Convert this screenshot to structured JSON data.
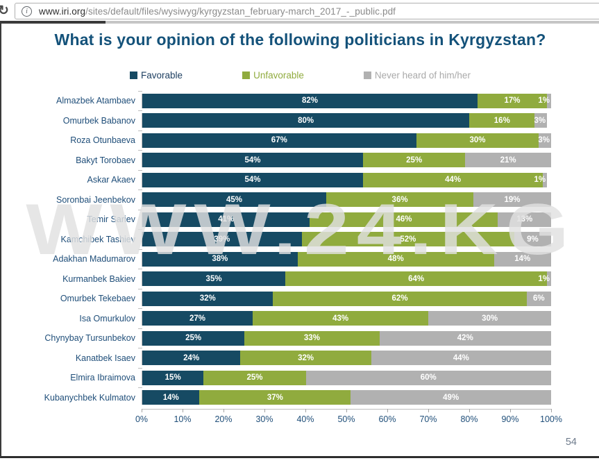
{
  "browser": {
    "reload_icon": "↻",
    "info_icon": "i",
    "url_host": "www.iri.org",
    "url_path": "/sites/default/files/wysiwyg/kyrgyzstan_february-march_2017_-_public.pdf"
  },
  "page": {
    "title": "What is your opinion of the following politicians in Kyrgyzstan?",
    "watermark": "WWW.24.KG",
    "page_number": "54"
  },
  "legend": [
    {
      "label": "Favorable",
      "color": "#164a63",
      "text_color": "#1b3d5f"
    },
    {
      "label": "Unfavorable",
      "color": "#90ab3e",
      "text_color": "#90ab3e"
    },
    {
      "label": "Never heard of him/her",
      "color": "#b1b1b1",
      "text_color": "#a9a9a9"
    }
  ],
  "chart_data": {
    "type": "bar",
    "orientation": "horizontal-stacked",
    "title": "What is your opinion of the following politicians in Kyrgyzstan?",
    "legend_position": "top",
    "xlim": [
      0,
      100
    ],
    "value_suffix": "%",
    "x_ticks": [
      "0%",
      "10%",
      "20%",
      "30%",
      "40%",
      "50%",
      "60%",
      "70%",
      "80%",
      "90%",
      "100%"
    ],
    "categories": [
      "Almazbek Atambaev",
      "Omurbek Babanov",
      "Roza Otunbaeva",
      "Bakyt Torobaev",
      "Askar Akaev",
      "Soronbai Jeenbekov",
      "Temir Sariev",
      "Kamchibek Tashiev",
      "Adakhan Madumarov",
      "Kurmanbek Bakiev",
      "Omurbek Tekebaev",
      "Isa Omurkulov",
      "Chynybay Tursunbekov",
      "Kanatbek Isaev",
      "Elmira Ibraimova",
      "Kubanychbek Kulmatov"
    ],
    "series": [
      {
        "name": "Favorable",
        "key": "favorable",
        "color": "#164a63",
        "values": [
          82,
          80,
          67,
          54,
          54,
          45,
          41,
          39,
          38,
          35,
          32,
          27,
          25,
          24,
          15,
          14
        ]
      },
      {
        "name": "Unfavorable",
        "key": "unfavorable",
        "color": "#90ab3e",
        "values": [
          17,
          16,
          30,
          25,
          44,
          36,
          46,
          52,
          48,
          64,
          62,
          43,
          33,
          32,
          25,
          37
        ]
      },
      {
        "name": "Never heard of him/her",
        "key": "never-heard",
        "color": "#b1b1b1",
        "values": [
          1,
          3,
          3,
          21,
          1,
          19,
          13,
          9,
          14,
          1,
          6,
          30,
          42,
          44,
          60,
          49
        ]
      }
    ]
  }
}
